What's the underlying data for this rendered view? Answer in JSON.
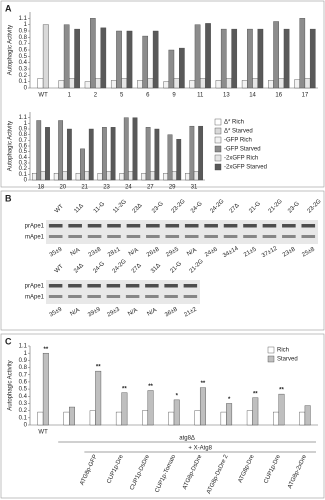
{
  "panel_labels": [
    "A",
    "B",
    "C"
  ],
  "chart_data": [
    {
      "type": "bar",
      "y_label": "Autophagic Activity",
      "ylim": [
        0,
        1.2
      ],
      "yticks": [
        0,
        0.1,
        0.2,
        0.3,
        0.4,
        0.5,
        0.6,
        0.7,
        0.8,
        0.9,
        1,
        1.1
      ],
      "categories": [
        "WT",
        "1",
        "2",
        "5",
        "6",
        "9",
        "11",
        "13",
        "14",
        "16",
        "17"
      ],
      "series": [
        {
          "color": "#ffffff",
          "values": [
            0.15,
            null,
            null,
            null,
            null,
            null,
            null,
            null,
            null,
            null,
            null
          ]
        },
        {
          "color": "#d9d9d9",
          "values": [
            1.0,
            null,
            null,
            null,
            null,
            null,
            null,
            null,
            null,
            null,
            null
          ]
        },
        {
          "color": "#f2f2f2",
          "values": [
            null,
            0.12,
            0.1,
            0.12,
            0.12,
            0.1,
            0.12,
            0.12,
            0.12,
            0.12,
            0.13
          ]
        },
        {
          "color": "#8c8c8c",
          "values": [
            null,
            1.0,
            1.1,
            0.9,
            0.82,
            0.6,
            1.0,
            0.93,
            0.93,
            1.05,
            1.1
          ]
        },
        {
          "color": "#e6e6e6",
          "values": [
            null,
            0.15,
            0.15,
            0.15,
            0.15,
            0.15,
            0.15,
            0.15,
            0.15,
            0.15,
            0.15
          ]
        },
        {
          "color": "#595959",
          "values": [
            null,
            0.93,
            0.95,
            0.9,
            0.9,
            0.63,
            1.02,
            0.93,
            0.93,
            0.93,
            0.93
          ]
        }
      ]
    },
    {
      "type": "bar",
      "y_label": "Autophagic Activity",
      "ylim": [
        0,
        1.2
      ],
      "yticks": [
        0,
        0.1,
        0.2,
        0.3,
        0.4,
        0.5,
        0.6,
        0.7,
        0.8,
        0.9,
        1,
        1.1
      ],
      "categories": [
        "18",
        "20",
        "21",
        "23",
        "24",
        "27",
        "29",
        "31"
      ],
      "legend": "right",
      "series": [
        {
          "name": "Δ* Rich",
          "color": "#ffffff",
          "values": [
            null,
            null,
            null,
            null,
            null,
            null,
            null,
            null
          ]
        },
        {
          "name": "Δ* Starved",
          "color": "#d9d9d9",
          "values": [
            null,
            null,
            null,
            null,
            null,
            null,
            null,
            null
          ]
        },
        {
          "name": "-GFP Rich",
          "color": "#f2f2f2",
          "values": [
            0.12,
            0.12,
            0.12,
            0.12,
            0.12,
            0.12,
            0.12,
            0.12
          ]
        },
        {
          "name": "-GFP Starved",
          "color": "#8c8c8c",
          "values": [
            1.05,
            1.05,
            0.55,
            0.93,
            1.1,
            0.93,
            0.8,
            0.95
          ]
        },
        {
          "name": "-2xGFP Rich",
          "color": "#e6e6e6",
          "values": [
            0.15,
            0.15,
            0.15,
            0.15,
            0.15,
            0.15,
            0.15,
            0.15
          ]
        },
        {
          "name": "-2xGFP Starved",
          "color": "#595959",
          "values": [
            0.93,
            0.9,
            0.9,
            0.93,
            1.1,
            0.9,
            0.72,
            0.95
          ]
        }
      ]
    },
    {
      "type": "bar",
      "y_label": "Autophagic Activity",
      "ylim": [
        0,
        1.1
      ],
      "yticks": [
        0,
        0.1,
        0.2,
        0.3,
        0.4,
        0.5,
        0.6,
        0.7,
        0.8,
        0.9,
        1,
        1.1
      ],
      "categories": [
        "WT",
        null,
        "ATG8p-GFP",
        "CUP1p-Dre",
        "CUP1p-DsDre",
        "CUP1p-Tomato",
        "ATG8p-DsDre",
        "ATG8p-DsDre 2",
        "ATG8p-Dre",
        "CUP1p-Dre",
        "ATG8p-2xDre"
      ],
      "legend": "upper right",
      "group_labels": [
        "atg8Δ",
        "+ X-Atg8"
      ],
      "annotations": [
        "**",
        null,
        "**",
        "**",
        "**",
        "*",
        "**",
        "*",
        "**",
        "**",
        null
      ],
      "series": [
        {
          "name": "Rich",
          "color": "#ffffff",
          "values": [
            0.18,
            0.18,
            0.2,
            0.18,
            0.2,
            0.18,
            0.2,
            0.18,
            0.2,
            0.18,
            0.18
          ]
        },
        {
          "name": "Starved",
          "color": "#bfbfbf",
          "values": [
            1.0,
            0.25,
            0.75,
            0.45,
            0.48,
            0.35,
            0.52,
            0.3,
            0.38,
            0.43,
            0.27
          ]
        }
      ]
    }
  ],
  "panel_b": {
    "gels": [
      {
        "row_labels": [
          "prApe1",
          "mApe1"
        ],
        "lanes": [
          "WT",
          "11Δ",
          "11-G",
          "11-2G",
          "23Δ",
          "23-G",
          "23-2G",
          "24-G",
          "24-2G",
          "27Δ",
          "21-G",
          "21-2G",
          "23-G",
          "23-2G"
        ],
        "values": [
          "35±9",
          "N/A",
          "23±8",
          "28±1",
          "N/A",
          "26±8",
          "29±5",
          "N/A",
          "24±6",
          "34±14",
          "21±5",
          "37±12",
          "23±8",
          "25±8"
        ]
      },
      {
        "row_labels": [
          "prApe1",
          "mApe1"
        ],
        "lanes": [
          "WT",
          "24Δ",
          "24-G",
          "24-2G",
          "27Δ",
          "31Δ",
          "21-G",
          "21-2G"
        ],
        "values": [
          "35±9",
          "N/A",
          "39±9",
          "29±3",
          "N/A",
          "N/A",
          "36±8",
          "21±2"
        ]
      }
    ]
  }
}
